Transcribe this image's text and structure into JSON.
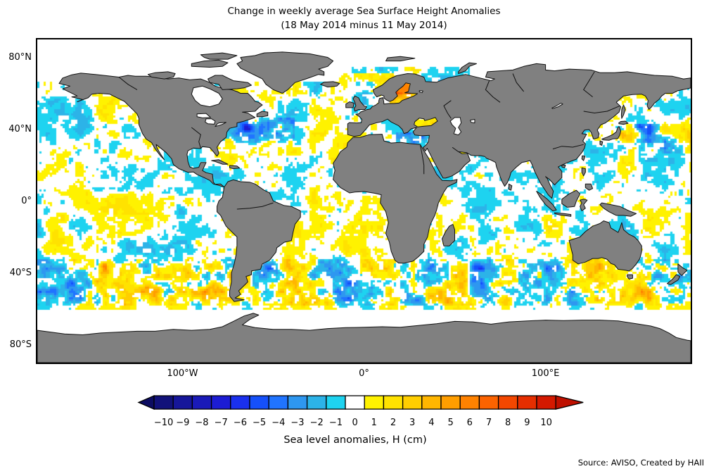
{
  "figure": {
    "title": "Change in weekly average Sea Surface Height Anomalies",
    "subtitle": "(18 May 2014 minus 11 May 2014)",
    "source": "Source: AVISO, Created by HAII"
  },
  "map": {
    "land_color": "#808080",
    "coast_color": "#111111",
    "no_data_color": "#ffffff",
    "lat_ticks": [
      {
        "label": "80°N",
        "lat": 80
      },
      {
        "label": "40°N",
        "lat": 40
      },
      {
        "label": "0°",
        "lat": 0
      },
      {
        "label": "40°S",
        "lat": -40
      },
      {
        "label": "80°S",
        "lat": -80
      }
    ],
    "lon_ticks": [
      {
        "label": "100°W",
        "lon": -100
      },
      {
        "label": "0°",
        "lon": 0
      },
      {
        "label": "100°E",
        "lon": 100
      }
    ]
  },
  "colorbar": {
    "label": "Sea level anomalies, H (cm)",
    "tick_labels": [
      "−10",
      "−9",
      "−8",
      "−7",
      "−6",
      "−5",
      "−4",
      "−3",
      "−2",
      "−1",
      "0",
      "1",
      "2",
      "3",
      "4",
      "5",
      "6",
      "7",
      "8",
      "9",
      "10"
    ],
    "cell_values": [
      -10,
      -9,
      -8,
      -7,
      -6,
      -5,
      -4,
      -3,
      -2,
      -1,
      0,
      1,
      2,
      3,
      4,
      5,
      6,
      7,
      8,
      9,
      10
    ],
    "cell_colors": [
      "#12127a",
      "#16169a",
      "#1a1ab8",
      "#1c1cd4",
      "#1a30ee",
      "#1550fa",
      "#2074ff",
      "#2e97f0",
      "#2cb3e8",
      "#1ed3f0",
      "#ffffff",
      "#fff200",
      "#ffe200",
      "#ffce00",
      "#ffb600",
      "#ff9e00",
      "#ff8200",
      "#fc6300",
      "#f34700",
      "#e62e00",
      "#d41900"
    ],
    "left_arrow_color": "#0d0d62",
    "right_arrow_color": "#bf1000"
  },
  "chart_data": {
    "type": "heatmap",
    "title": "Change in weekly average Sea Surface Height Anomalies",
    "subtitle": "(18 May 2014 minus 11 May 2014)",
    "projection": "equirectangular world map, 180°W to 180°E, 90°S to 90°N",
    "x_tick_labels": [
      "100°W",
      "0°",
      "100°E"
    ],
    "y_tick_labels": [
      "80°N",
      "40°N",
      "0°",
      "40°S",
      "80°S"
    ],
    "colorbar": {
      "label": "Sea level anomalies, H (cm)",
      "units": "cm",
      "ticks": [
        -10,
        -9,
        -8,
        -7,
        -6,
        -5,
        -4,
        -3,
        -2,
        -1,
        0,
        1,
        2,
        3,
        4,
        5,
        6,
        7,
        8,
        9,
        10
      ],
      "range": [
        -10,
        10
      ],
      "extend": "both",
      "n_discrete_cells": 21
    },
    "land_color": "#808080",
    "no_data_color": "#ffffff",
    "visible_features": [
      "Mottled weekly-difference field dominated by weak anomalies (±1–3 cm, yellow/cyan/white) over most ocean basins",
      "Intense alternating ±5–10 cm eddies along the Gulf Stream (NW Atlantic ~35–45°N)",
      "Intense alternating ±5–10 cm eddies in the Kuroshio extension east of Japan (~30–40°N)",
      "Strong eddy band across the Southern Ocean (~35–55°S), including Brazil–Malvinas and Agulhas regions",
      "Large positive (orange, ~+5 cm) anomaly filling the Baltic Sea / Gulf of Bothnia",
      "Negative (cyan/blue) anomalies in the eastern Mediterranean",
      "White no-data areas: Arctic Ocean, sea-ice band around Antarctica, Hudson Bay, Caspian Sea"
    ]
  }
}
